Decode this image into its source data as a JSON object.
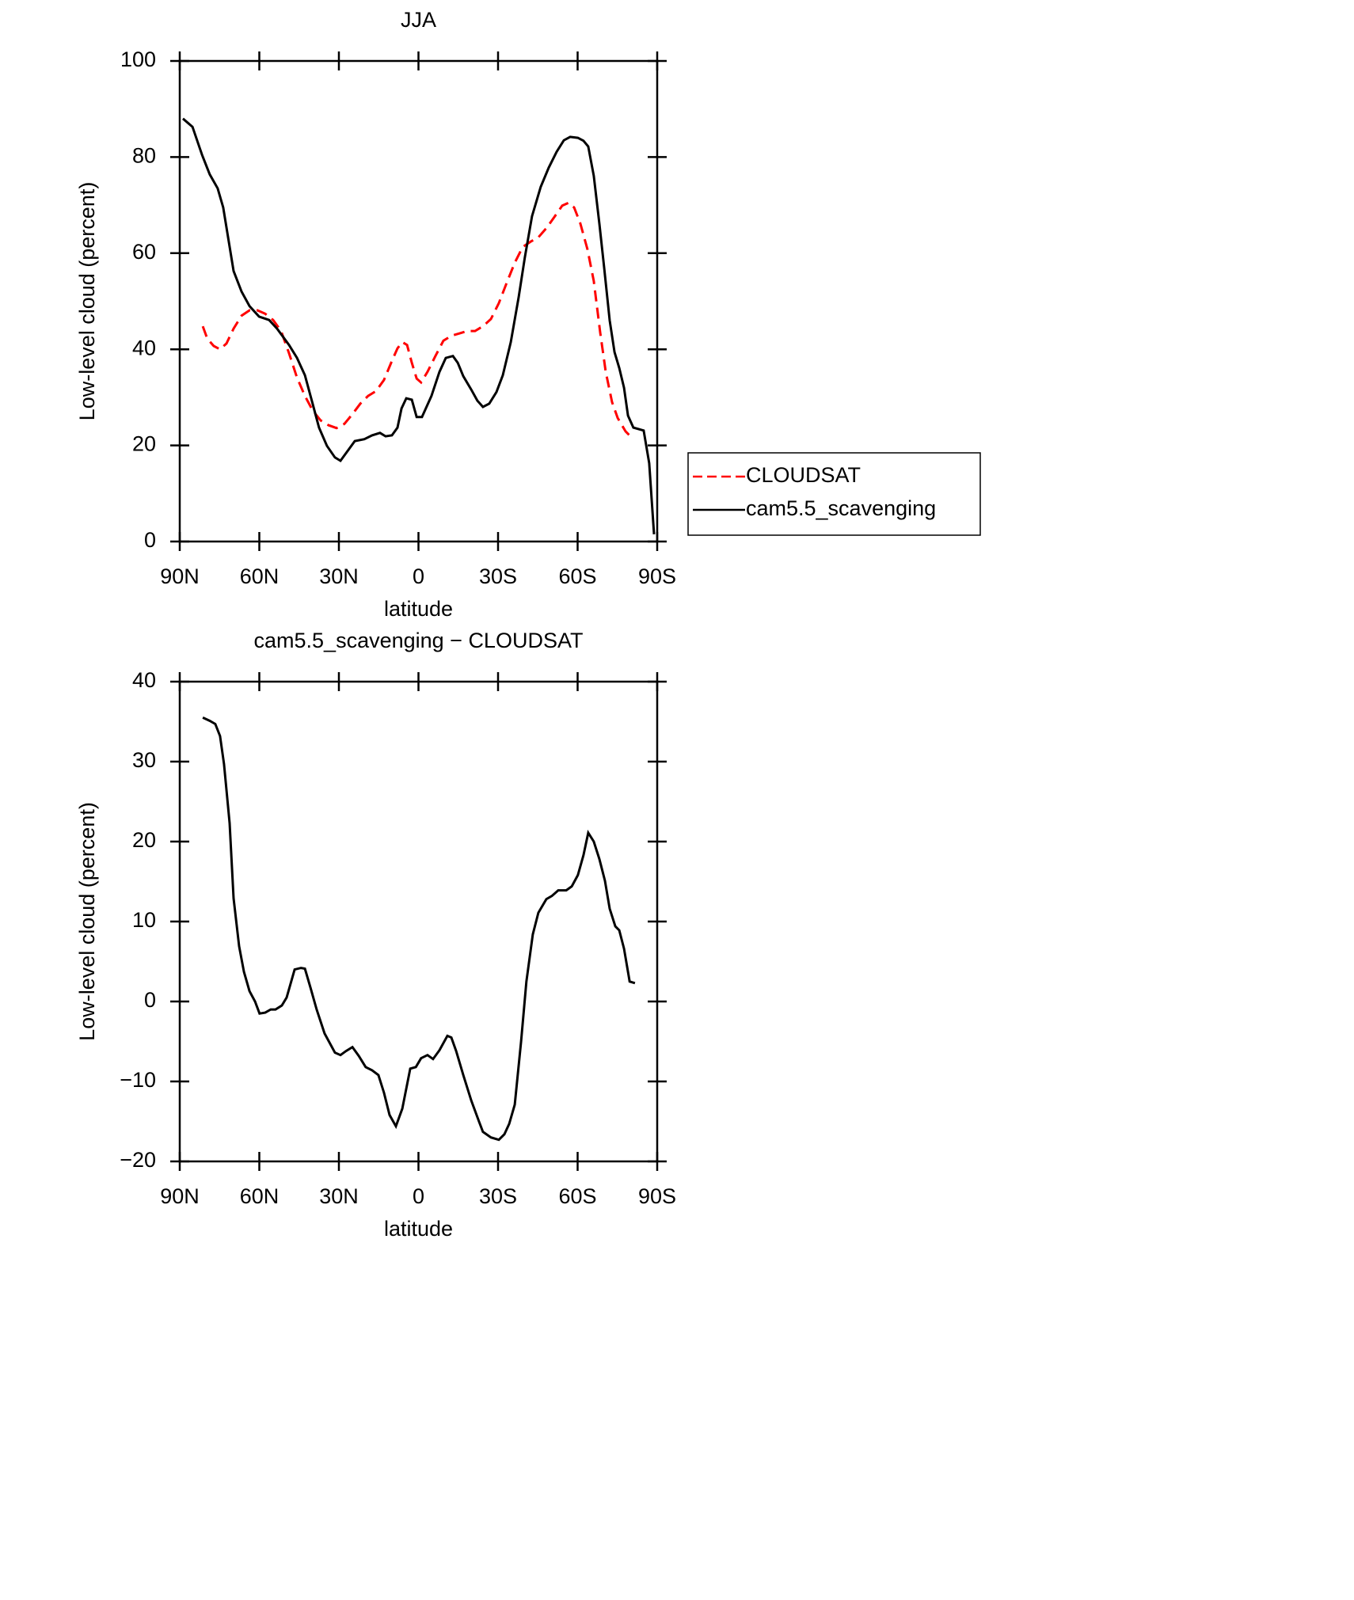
{
  "chart_data": [
    {
      "type": "line",
      "title": "JJA",
      "xlabel": "latitude",
      "ylabel": "Low-level cloud (percent)",
      "xlim": [
        90,
        -90
      ],
      "xticks": [
        {
          "value": 90,
          "label": "90N"
        },
        {
          "value": 60,
          "label": "60N"
        },
        {
          "value": 30,
          "label": "30N"
        },
        0,
        {
          "value": -30,
          "label": "30S"
        },
        {
          "value": -60,
          "label": "60S"
        },
        {
          "value": -90,
          "label": "90S"
        }
      ],
      "ylim": [
        0,
        100
      ],
      "yticks": [
        0,
        20,
        40,
        60,
        80,
        100
      ],
      "legend": "right",
      "series": [
        {
          "name": "CLOUDSAT",
          "color": "#ff0000",
          "line_style": "dashed",
          "x": [
            81.3,
            79.6,
            77.2,
            74.8,
            72.4,
            69.7,
            66.7,
            63.7,
            60.7,
            57.8,
            54.8,
            51.8,
            48.8,
            45.8,
            42.8,
            39.9,
            36.9,
            33.9,
            30.9,
            27.9,
            24.9,
            21.9,
            19.0,
            16.0,
            13.0,
            10.0,
            7.9,
            6.1,
            4.3,
            2.5,
            0.7,
            -1.0,
            -3.4,
            -6.4,
            -9.4,
            -12.4,
            -15.4,
            -18.4,
            -21.3,
            -24.3,
            -27.3,
            -30.3,
            -33.3,
            -36.3,
            -39.3,
            -42.3,
            -45.2,
            -48.2,
            -51.2,
            -54.2,
            -56.6,
            -58.7,
            -61.0,
            -63.7,
            -66.1,
            -68.5,
            -70.6,
            -73.0,
            -75.1,
            -78.1,
            -81.0
          ],
          "values": [
            44.8,
            42.2,
            40.7,
            40.0,
            41.2,
            44.3,
            47.0,
            48.1,
            48.1,
            47.4,
            46.1,
            43.8,
            39.2,
            34.1,
            30.3,
            27.3,
            25.2,
            24.2,
            23.6,
            24.5,
            26.5,
            28.7,
            30.3,
            31.3,
            33.6,
            37.6,
            40.2,
            41.5,
            40.9,
            37.2,
            33.9,
            33.1,
            35.3,
            38.6,
            41.8,
            42.8,
            43.3,
            43.8,
            43.8,
            44.8,
            46.3,
            49.6,
            53.9,
            58.0,
            61.3,
            62.4,
            63.3,
            65.2,
            67.5,
            69.9,
            70.5,
            69.5,
            66.2,
            60.8,
            54.2,
            43.5,
            35.3,
            29.0,
            25.7,
            22.9,
            21.3
          ]
        },
        {
          "name": "cam5.5_scavenging",
          "color": "#000000",
          "line_style": "solid",
          "x": [
            88.8,
            85.2,
            81.6,
            78.7,
            75.7,
            73.6,
            69.7,
            66.7,
            63.7,
            60.1,
            56.3,
            53.3,
            48.8,
            45.8,
            42.8,
            39.9,
            37.5,
            34.5,
            31.5,
            29.4,
            26.4,
            24.0,
            20.4,
            17.5,
            14.5,
            12.4,
            10.0,
            7.9,
            6.4,
            4.6,
            2.5,
            0.7,
            -1.3,
            -4.9,
            -7.9,
            -10.3,
            -13.0,
            -14.8,
            -16.9,
            -19.9,
            -22.2,
            -24.3,
            -26.7,
            -29.4,
            -31.8,
            -34.8,
            -37.8,
            -40.1,
            -42.8,
            -46.1,
            -49.1,
            -52.1,
            -54.8,
            -57.2,
            -60.1,
            -62.2,
            -64.0,
            -66.1,
            -68.2,
            -70.0,
            -72.1,
            -73.9,
            -75.7,
            -77.5,
            -79.0,
            -81.0,
            -84.9,
            -87.0,
            -88.8
          ],
          "values": [
            88.0,
            86.3,
            80.5,
            76.4,
            73.5,
            69.5,
            56.3,
            52.0,
            49.0,
            46.8,
            46.1,
            44.3,
            40.9,
            38.2,
            34.6,
            28.7,
            23.7,
            19.9,
            17.5,
            16.8,
            19.1,
            20.9,
            21.3,
            22.1,
            22.6,
            21.9,
            22.1,
            23.7,
            27.7,
            29.8,
            29.5,
            25.9,
            25.9,
            30.3,
            35.3,
            38.2,
            38.6,
            37.2,
            34.4,
            31.6,
            29.3,
            28.0,
            28.7,
            31.1,
            34.6,
            41.5,
            50.9,
            59.1,
            67.7,
            73.8,
            77.8,
            81.1,
            83.5,
            84.2,
            84.0,
            83.4,
            82.2,
            76.1,
            66.1,
            57.0,
            46.0,
            39.4,
            36.1,
            32.0,
            26.2,
            23.7,
            23.1,
            16.3,
            1.5
          ]
        }
      ]
    },
    {
      "type": "line",
      "title": "cam5.5_scavenging − CLOUDSAT",
      "xlabel": "latitude",
      "ylabel": "Low-level cloud (percent)",
      "xlim": [
        90,
        -90
      ],
      "xticks": [
        {
          "value": 90,
          "label": "90N"
        },
        {
          "value": 60,
          "label": "60N"
        },
        {
          "value": 30,
          "label": "30N"
        },
        0,
        {
          "value": -30,
          "label": "30S"
        },
        {
          "value": -60,
          "label": "60S"
        },
        {
          "value": -90,
          "label": "90S"
        }
      ],
      "ylim": [
        -20,
        40
      ],
      "yticks": [
        {
          "value": -20,
          "label": "−20"
        },
        {
          "value": -10,
          "label": "−10"
        },
        0,
        10,
        20,
        30,
        40
      ],
      "series": [
        {
          "color": "#000000",
          "line_style": "solid",
          "x": [
            81.3,
            78.7,
            76.6,
            74.8,
            73.3,
            71.2,
            69.7,
            67.6,
            65.8,
            63.7,
            61.6,
            59.9,
            57.8,
            55.7,
            53.9,
            51.5,
            49.7,
            46.7,
            44.3,
            42.8,
            40.7,
            38.4,
            35.4,
            31.5,
            29.4,
            27.3,
            24.9,
            22.5,
            19.9,
            17.5,
            15.1,
            13.0,
            10.9,
            8.5,
            6.1,
            3.1,
            1.0,
            -1.0,
            -3.4,
            -5.5,
            -7.9,
            -10.9,
            -12.4,
            -14.2,
            -16.9,
            -19.9,
            -22.8,
            -24.3,
            -27.3,
            -30.3,
            -32.4,
            -34.2,
            -36.3,
            -38.7,
            -40.7,
            -43.1,
            -45.2,
            -48.2,
            -50.3,
            -52.7,
            -55.7,
            -57.8,
            -60.1,
            -62.2,
            -64.0,
            -66.1,
            -68.2,
            -70.3,
            -72.1,
            -74.2,
            -75.7,
            -77.5,
            -79.6,
            -81.6
          ],
          "values": [
            35.5,
            35.1,
            34.7,
            33.2,
            29.7,
            22.3,
            12.9,
            6.9,
            3.7,
            1.3,
            0,
            -1.5,
            -1.4,
            -1.0,
            -1.0,
            -0.5,
            0.5,
            4.0,
            4.2,
            4.1,
            1.7,
            -1.0,
            -4.0,
            -6.4,
            -6.7,
            -6.2,
            -5.7,
            -6.8,
            -8.2,
            -8.6,
            -9.2,
            -11.4,
            -14.2,
            -15.6,
            -13.4,
            -8.4,
            -8.2,
            -7.1,
            -6.7,
            -7.2,
            -6.1,
            -4.3,
            -4.5,
            -6.2,
            -9.2,
            -12.4,
            -15.0,
            -16.3,
            -17.0,
            -17.3,
            -16.6,
            -15.3,
            -12.9,
            -5.0,
            2.5,
            8.4,
            11.1,
            12.8,
            13.2,
            13.9,
            13.9,
            14.4,
            15.8,
            18.3,
            21.1,
            20.0,
            17.8,
            15.1,
            11.6,
            9.4,
            8.9,
            6.6,
            2.5,
            2.3
          ]
        }
      ]
    }
  ]
}
